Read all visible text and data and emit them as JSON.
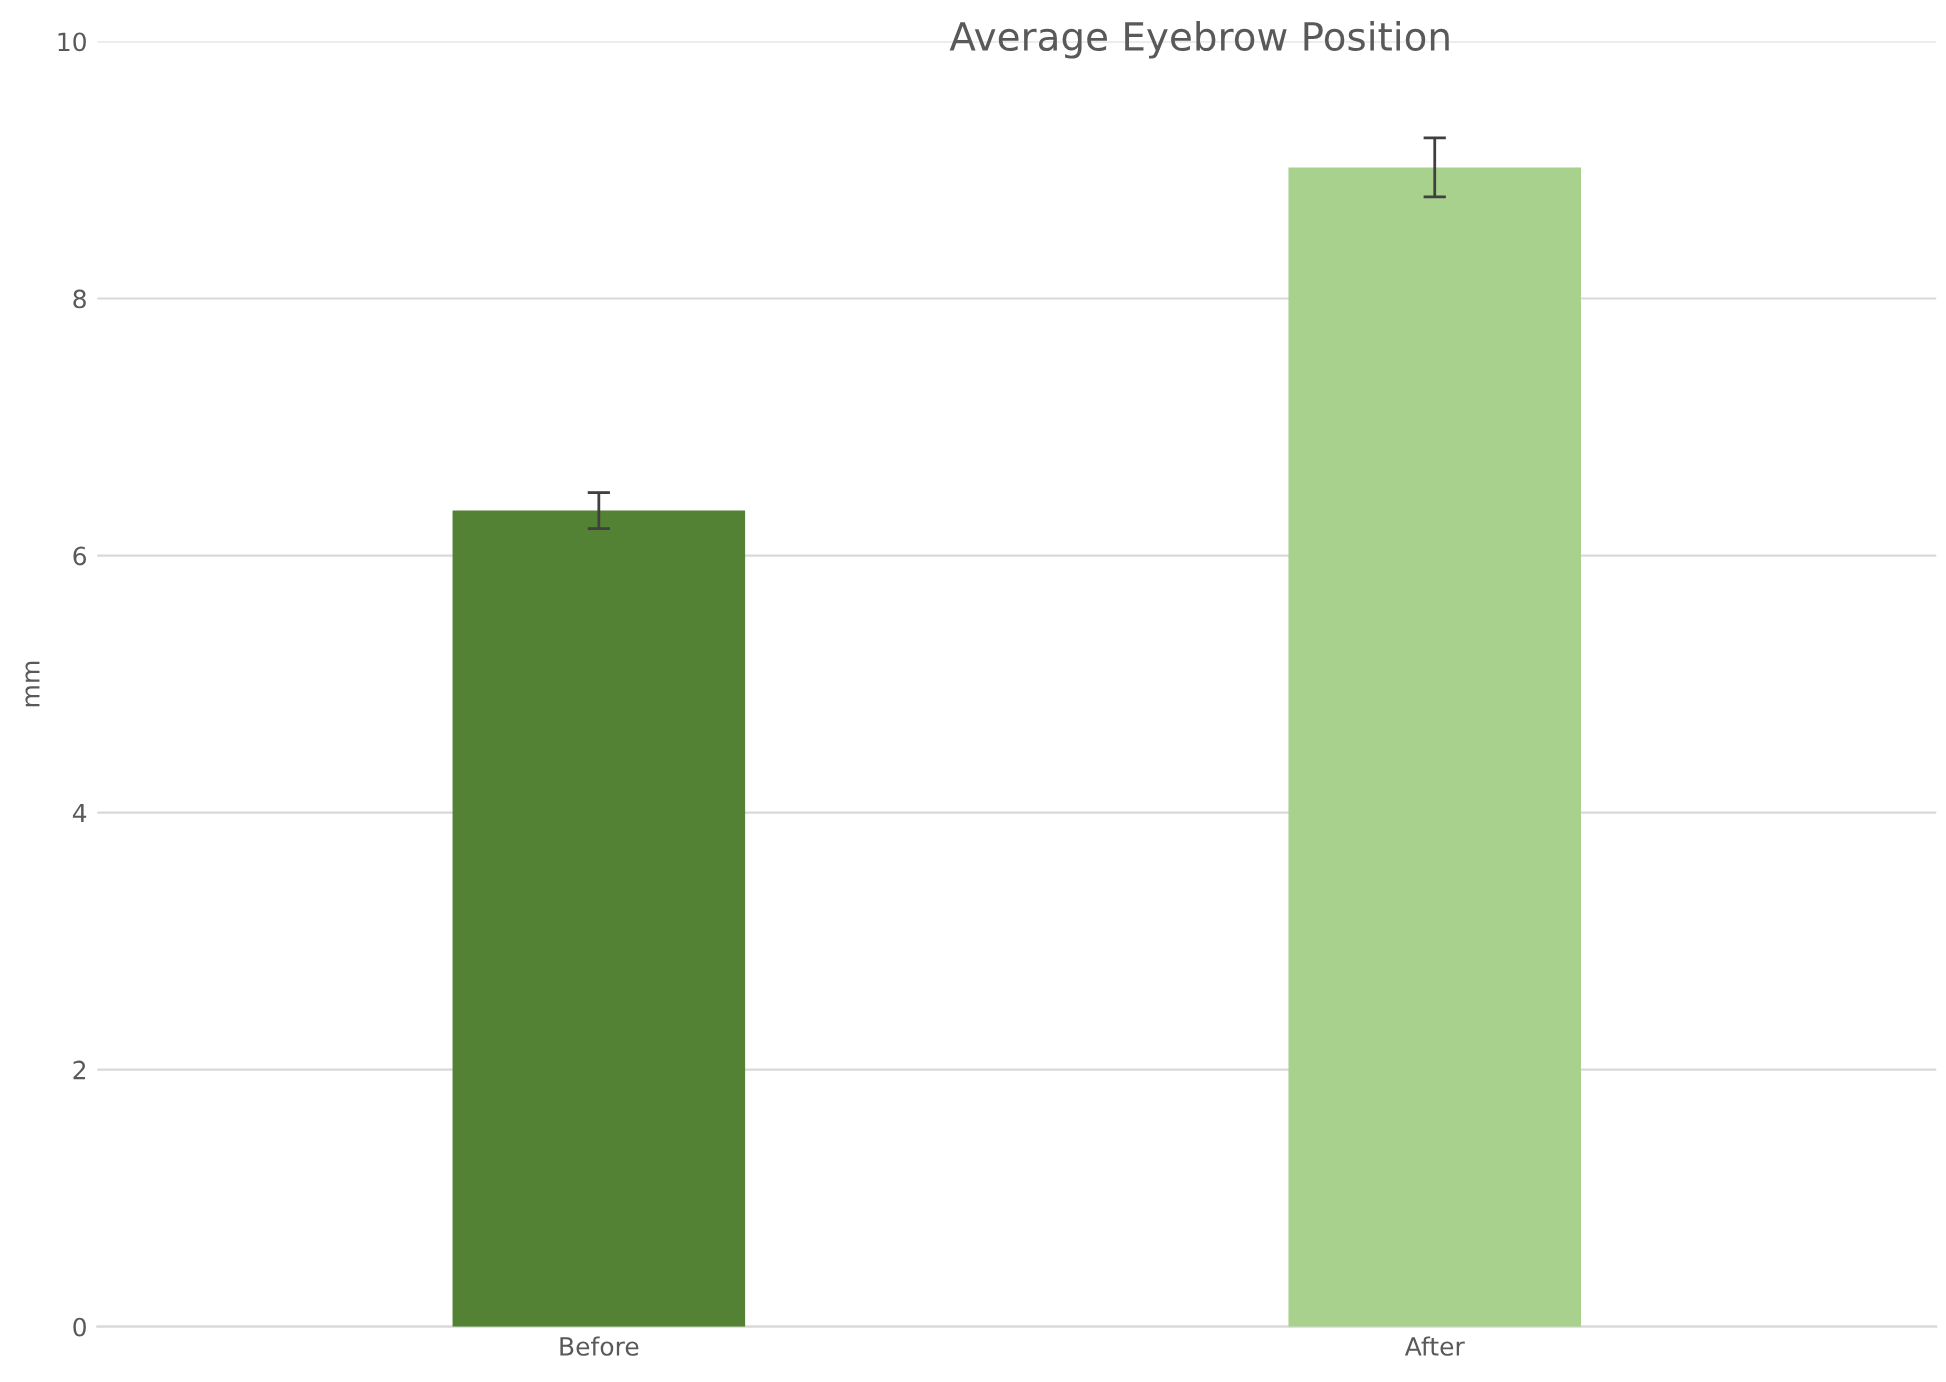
{
  "chart_data": {
    "type": "bar",
    "title": "Average Eyebrow Position",
    "ylabel": "mm",
    "categories": [
      "Before",
      "After"
    ],
    "values": [
      6.35,
      9.02
    ],
    "errors": [
      0.14,
      0.23
    ],
    "colors": [
      "#548235",
      "#a9d18e"
    ],
    "ylim": [
      0,
      10
    ],
    "yticks": [
      0,
      2,
      4,
      6,
      8,
      10
    ],
    "grid": "y"
  }
}
